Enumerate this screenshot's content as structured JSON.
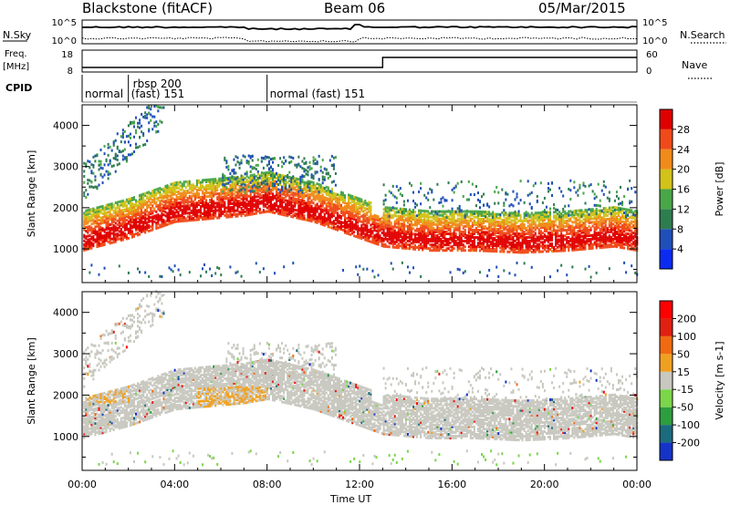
{
  "header": {
    "title": "Blackstone (fitACF)",
    "beam": "Beam 06",
    "date": "05/Mar/2015"
  },
  "nsky_panel": {
    "left_label": "N.Sky",
    "right_label": "N.Search",
    "ticks_left": [
      "10^5",
      "10^0"
    ],
    "ticks_right": [
      "10^5",
      "10^0"
    ]
  },
  "freq_panel": {
    "left_label_1": "Freq.",
    "left_label_2": "[MHz]",
    "right_label": "Nave",
    "ticks_left": [
      "18",
      "8"
    ],
    "ticks_right": [
      "60",
      "0"
    ],
    "nave_step_hour": 13.0
  },
  "cpid": {
    "label": "CPID",
    "segments": [
      {
        "start": 0.0,
        "line1": "",
        "line2": "normal"
      },
      {
        "start": 2.0,
        "line1": "rbsp 200",
        "line2": "(fast) 151"
      },
      {
        "start": 8.0,
        "line1": "",
        "line2": "normal (fast) 151"
      }
    ]
  },
  "chart_data": [
    {
      "type": "heatmap",
      "name": "power",
      "ylabel": "Slant Range [km]",
      "yticks": [
        "1000",
        "2000",
        "3000",
        "4000"
      ],
      "ylim": [
        180,
        4500
      ],
      "xlim": [
        0,
        24
      ],
      "colorbar_label": "Power [dB]",
      "colorbar_ticks": [
        "4",
        "8",
        "12",
        "16",
        "20",
        "24",
        "28"
      ],
      "colorbar_colors": [
        "#0b2cf0",
        "#1f4fb8",
        "#2e7d4f",
        "#4aa648",
        "#d2c21a",
        "#f08a1a",
        "#f04a1a",
        "#e00000"
      ],
      "bands": [
        {
          "x": [
            0,
            2,
            4,
            6,
            7,
            8,
            10,
            11,
            12,
            13,
            15,
            17,
            19,
            21,
            22,
            23,
            24
          ],
          "y": [
            1200,
            1500,
            1900,
            2000,
            2050,
            2150,
            1900,
            1700,
            1500,
            1300,
            1200,
            1200,
            1150,
            1200,
            1250,
            1300,
            1200
          ]
        }
      ]
    },
    {
      "type": "heatmap",
      "name": "velocity",
      "ylabel": "Slant Range [km]",
      "yticks": [
        "1000",
        "2000",
        "3000",
        "4000"
      ],
      "ylim": [
        180,
        4500
      ],
      "xlim": [
        0,
        24
      ],
      "colorbar_label": "Velocity [m s-1]",
      "colorbar_ticks": [
        "200",
        "100",
        "50",
        "15",
        "-15",
        "-50",
        "-100",
        "-200"
      ],
      "colorbar_colors": [
        "#1633c8",
        "#1c6a7e",
        "#2e9d3e",
        "#7bd64a",
        "#c8c8c0",
        "#f0a020",
        "#f06a10",
        "#e02010",
        "#ff0000"
      ]
    }
  ],
  "xaxis": {
    "label": "Time UT",
    "ticks": [
      "00:00",
      "04:00",
      "08:00",
      "12:00",
      "16:00",
      "20:00",
      "00:00"
    ]
  }
}
